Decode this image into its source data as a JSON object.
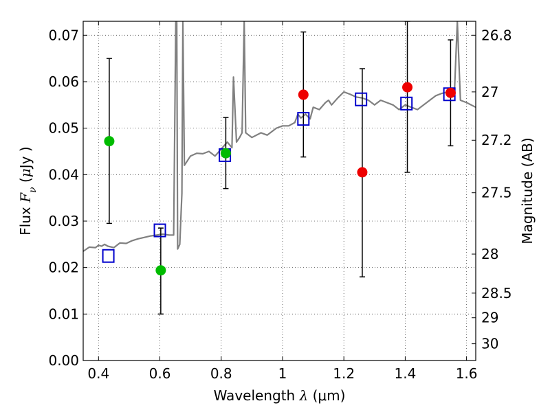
{
  "chart_data": {
    "type": "scatter",
    "title": "",
    "xlabel": "Wavelength  λ (μm)",
    "ylabel": "Flux  F_ν  ( μJy )",
    "ylabel_parts": {
      "prefix": "Flux  ",
      "symbol": "F",
      "subscript": "ν",
      "open": "  (",
      "unit_symbol": "μ",
      "unit": "Jy )"
    },
    "xlabel_parts": {
      "prefix": "Wavelength  ",
      "symbol": "λ",
      "unit": " (μm)"
    },
    "ylabel_right": "Magnitude (AB)",
    "xlim": [
      0.35,
      1.63
    ],
    "ylim": [
      0.0,
      0.073
    ],
    "grid": true,
    "x_ticks": [
      0.4,
      0.6,
      0.8,
      1.0,
      1.2,
      1.4,
      1.6
    ],
    "x_tick_labels": [
      "0.4",
      "0.6",
      "0.8",
      "1",
      "1.2",
      "1.4",
      "1.6"
    ],
    "y_ticks": [
      0.0,
      0.01,
      0.02,
      0.03,
      0.04,
      0.05,
      0.06,
      0.07
    ],
    "y_tick_labels": [
      "0.00",
      "0.01",
      "0.02",
      "0.03",
      "0.04",
      "0.05",
      "0.06",
      "0.07"
    ],
    "right_ticks": [
      {
        "flux": 0.07,
        "label": "26.8"
      },
      {
        "flux": 0.0578,
        "label": "27"
      },
      {
        "flux": 0.0474,
        "label": "27.2"
      },
      {
        "flux": 0.0361,
        "label": "27.5"
      },
      {
        "flux": 0.0229,
        "label": "28"
      },
      {
        "flux": 0.0145,
        "label": "28.5"
      },
      {
        "flux": 0.0092,
        "label": "29"
      },
      {
        "flux": 0.0036,
        "label": "30"
      }
    ],
    "series": [
      {
        "name": "model-spectrum",
        "style": "line",
        "color": "#808080",
        "x": [
          0.35,
          0.37,
          0.39,
          0.4,
          0.41,
          0.42,
          0.43,
          0.45,
          0.47,
          0.49,
          0.51,
          0.53,
          0.55,
          0.57,
          0.59,
          0.61,
          0.63,
          0.645,
          0.652,
          0.655,
          0.658,
          0.665,
          0.672,
          0.675,
          0.68,
          0.7,
          0.72,
          0.74,
          0.76,
          0.78,
          0.8,
          0.82,
          0.835,
          0.84,
          0.85,
          0.86,
          0.868,
          0.875,
          0.88,
          0.9,
          0.93,
          0.95,
          0.98,
          1.0,
          1.02,
          1.04,
          1.05,
          1.06,
          1.075,
          1.09,
          1.1,
          1.12,
          1.14,
          1.15,
          1.16,
          1.18,
          1.2,
          1.22,
          1.24,
          1.26,
          1.28,
          1.3,
          1.32,
          1.34,
          1.36,
          1.38,
          1.4,
          1.42,
          1.44,
          1.46,
          1.48,
          1.5,
          1.52,
          1.54,
          1.56,
          1.57,
          1.58,
          1.6,
          1.63
        ],
        "y": [
          0.0235,
          0.0244,
          0.0243,
          0.0248,
          0.0246,
          0.025,
          0.0246,
          0.0243,
          0.0253,
          0.0252,
          0.0258,
          0.0262,
          0.0265,
          0.0268,
          0.027,
          0.0272,
          0.027,
          0.027,
          0.073,
          0.073,
          0.024,
          0.025,
          0.036,
          0.073,
          0.042,
          0.044,
          0.0446,
          0.0445,
          0.045,
          0.044,
          0.0455,
          0.047,
          0.0458,
          0.061,
          0.047,
          0.048,
          0.049,
          0.073,
          0.049,
          0.048,
          0.049,
          0.0485,
          0.05,
          0.0505,
          0.0505,
          0.0512,
          0.053,
          0.0522,
          0.053,
          0.052,
          0.0545,
          0.054,
          0.0555,
          0.056,
          0.055,
          0.0565,
          0.0578,
          0.0573,
          0.0567,
          0.0565,
          0.056,
          0.055,
          0.056,
          0.0555,
          0.055,
          0.054,
          0.055,
          0.0545,
          0.054,
          0.055,
          0.056,
          0.057,
          0.0575,
          0.0578,
          0.057,
          0.073,
          0.056,
          0.0555,
          0.0545
        ]
      },
      {
        "name": "model-photometry",
        "style": "open-square",
        "color": "#0000cc",
        "x": [
          0.432,
          0.6,
          0.812,
          1.068,
          1.256,
          1.404,
          1.544
        ],
        "y": [
          0.0225,
          0.028,
          0.0442,
          0.052,
          0.0562,
          0.0553,
          0.0573
        ]
      },
      {
        "name": "observed-green",
        "style": "filled-circle",
        "color": "#00bb00",
        "x": [
          0.435,
          0.603,
          0.815
        ],
        "y": [
          0.0472,
          0.0194,
          0.0446
        ]
      },
      {
        "name": "observed-red",
        "style": "filled-circle",
        "color": "#ee0000",
        "x": [
          1.068,
          1.26,
          1.407,
          1.548
        ],
        "y": [
          0.0572,
          0.0405,
          0.0588,
          0.0576
        ]
      }
    ],
    "error_bars": [
      {
        "x": 0.435,
        "low": 0.0295,
        "high": 0.065
      },
      {
        "x": 0.603,
        "low": 0.01,
        "high": 0.0285
      },
      {
        "x": 0.815,
        "low": 0.037,
        "high": 0.0523
      },
      {
        "x": 1.068,
        "low": 0.0438,
        "high": 0.0707
      },
      {
        "x": 1.26,
        "low": 0.018,
        "high": 0.0628
      },
      {
        "x": 1.407,
        "low": 0.0405,
        "high": 0.073
      },
      {
        "x": 1.548,
        "low": 0.0462,
        "high": 0.069
      }
    ]
  }
}
